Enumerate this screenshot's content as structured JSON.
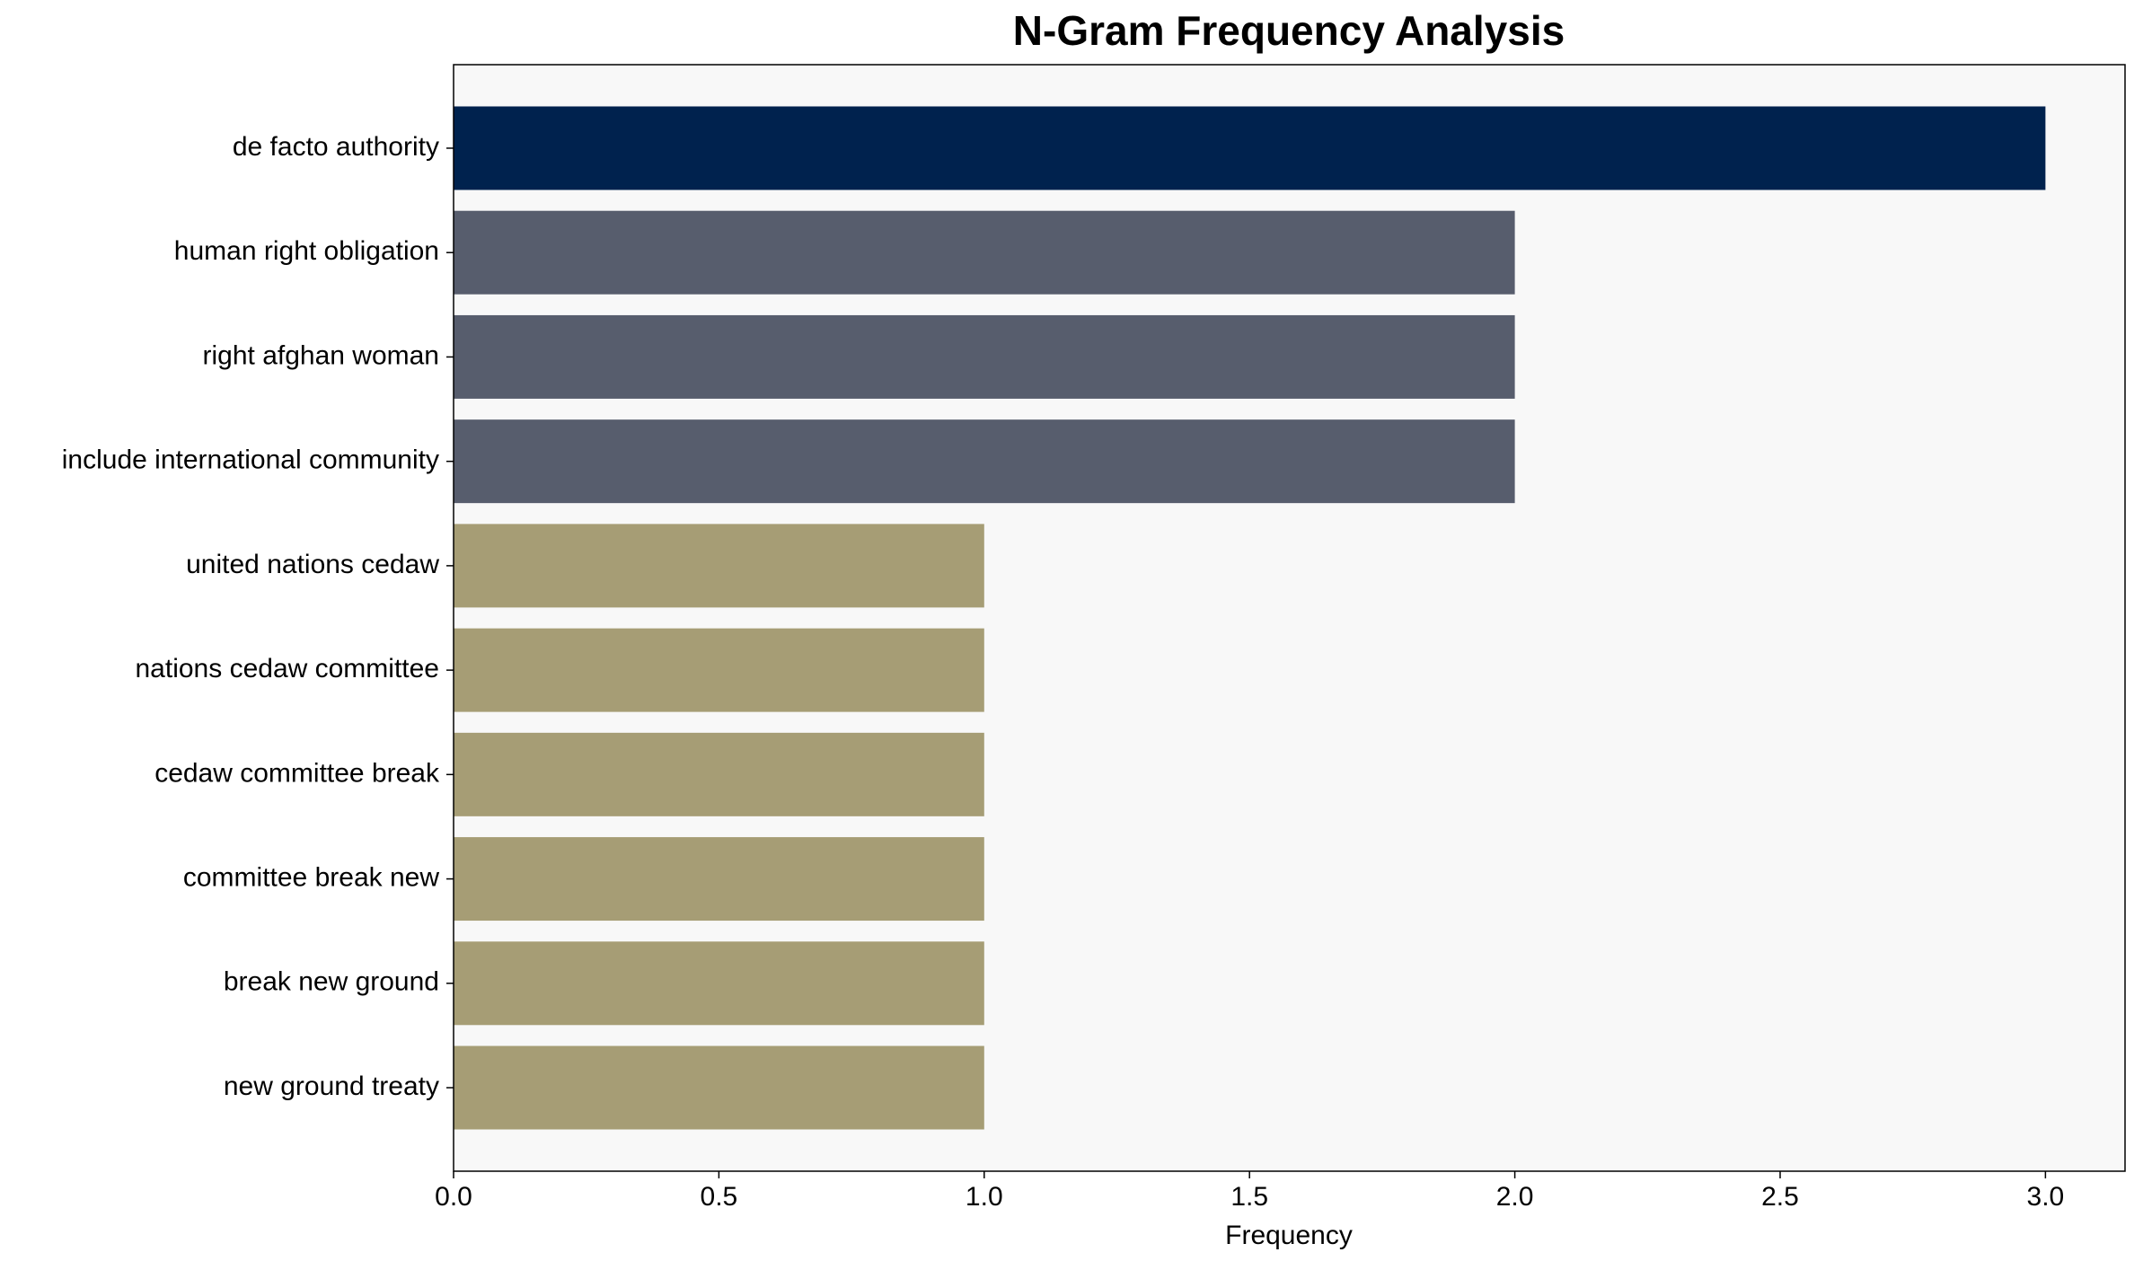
{
  "chart_data": {
    "type": "bar",
    "orientation": "horizontal",
    "title": "N-Gram Frequency Analysis",
    "xlabel": "Frequency",
    "categories": [
      "de facto authority",
      "human right obligation",
      "right afghan woman",
      "include international community",
      "united nations cedaw",
      "nations cedaw committee",
      "cedaw committee break",
      "committee break new",
      "break new ground",
      "new ground treaty"
    ],
    "values": [
      3,
      2,
      2,
      2,
      1,
      1,
      1,
      1,
      1,
      1
    ],
    "colors": [
      "#00224e",
      "#575d6d",
      "#575d6d",
      "#575d6d",
      "#a69d75",
      "#a69d75",
      "#a69d75",
      "#a69d75",
      "#a69d75",
      "#a69d75"
    ],
    "xlim": [
      0,
      3.15
    ],
    "xticks": [
      {
        "value": 0,
        "label": "0.0"
      },
      0.5,
      {
        "value": 1,
        "label": "1.0"
      },
      1.5,
      {
        "value": 2,
        "label": "2.0"
      },
      2.5,
      {
        "value": 3,
        "label": "3.0"
      }
    ],
    "grid": false
  }
}
